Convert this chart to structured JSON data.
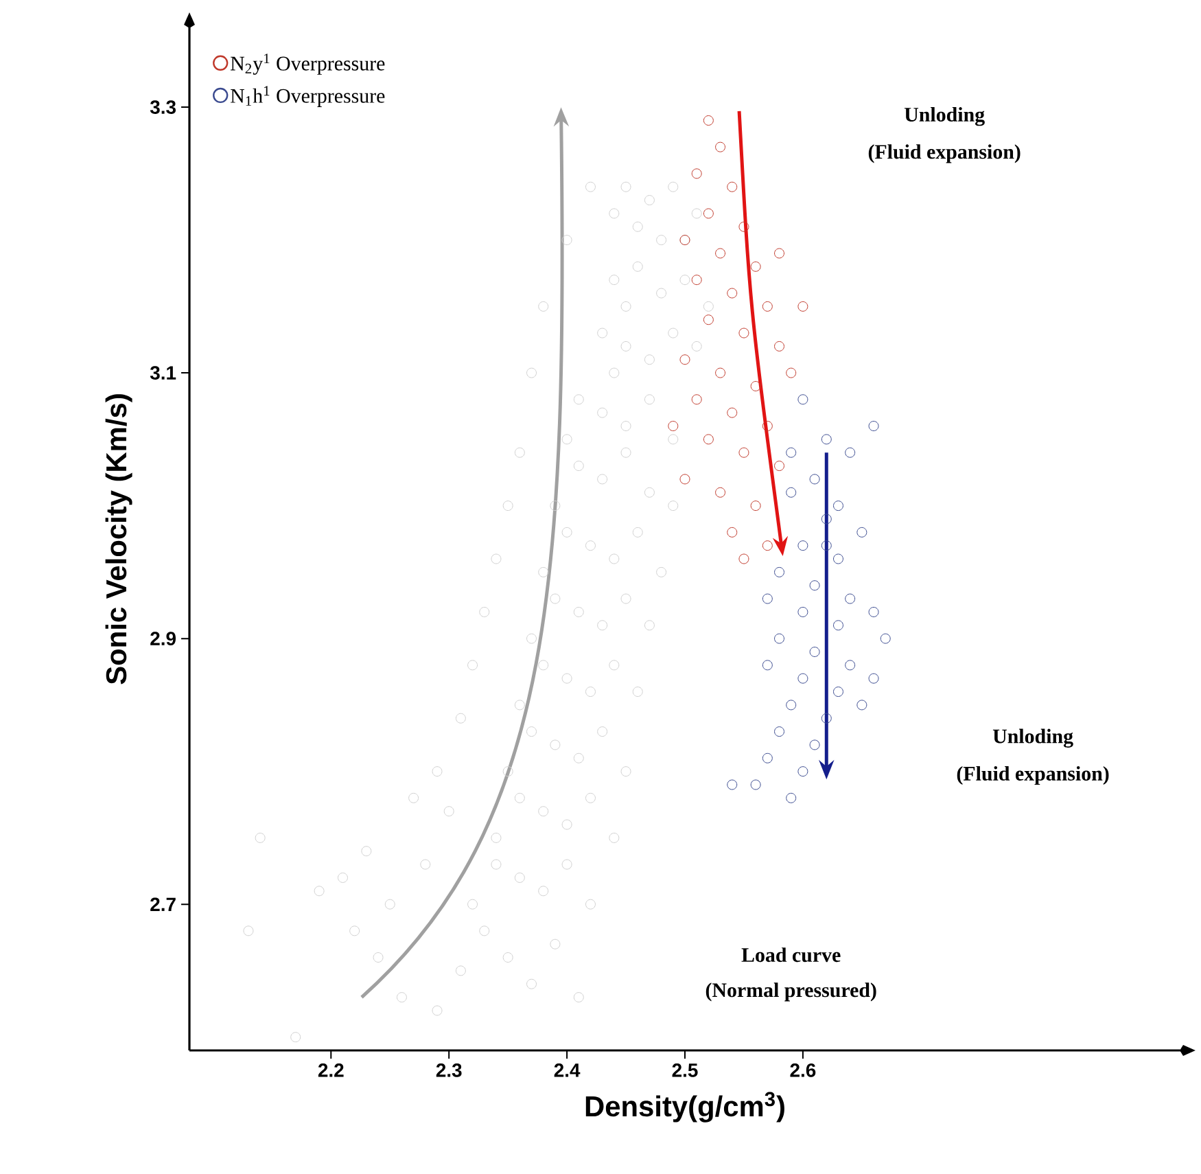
{
  "chart_data": {
    "type": "scatter",
    "xlabel": "Density(g/cm$^{3}$)",
    "ylabel": "Sonic Velocity (Km/s)",
    "xlim": [
      2.08,
      2.92
    ],
    "ylim": [
      2.59,
      3.36
    ],
    "xticks": [
      2.2,
      2.3,
      2.4,
      2.5,
      2.6
    ],
    "yticks": [
      2.7,
      2.9,
      3.1,
      3.3
    ],
    "marker": "circle",
    "legend": "top left",
    "annotations": [
      "Unloding",
      "(Fluid expansion)",
      "Unloding",
      "(Fluid expansion)",
      "Load curve",
      "(Normal pressured)"
    ],
    "series": [
      {
        "color": "#cfcfcf",
        "x": [
          2.45,
          2.47,
          2.49,
          2.51,
          2.46,
          2.48,
          2.5,
          2.44,
          2.44,
          2.46,
          2.48,
          2.5,
          2.52,
          2.45,
          2.43,
          2.45,
          2.47,
          2.49,
          2.51,
          2.44,
          2.41,
          2.43,
          2.45,
          2.47,
          2.49,
          2.4,
          2.41,
          2.43,
          2.45,
          2.47,
          2.39,
          2.49,
          2.4,
          2.42,
          2.44,
          2.46,
          2.38,
          2.48,
          2.39,
          2.41,
          2.43,
          2.45,
          2.37,
          2.47,
          2.38,
          2.4,
          2.42,
          2.44,
          2.36,
          2.46,
          2.37,
          2.39,
          2.41,
          2.43,
          2.35,
          2.45,
          2.36,
          2.38,
          2.4,
          2.42,
          2.34,
          2.44,
          2.34,
          2.36,
          2.38,
          2.4,
          2.32,
          2.42,
          2.33,
          2.35,
          2.37,
          2.39,
          2.31,
          2.41,
          2.29,
          2.14,
          2.13,
          2.17,
          2.19,
          2.21,
          2.22,
          2.23,
          2.25,
          2.24,
          2.27,
          2.28,
          2.29,
          2.26,
          2.3,
          2.31,
          2.32,
          2.33,
          2.34,
          2.35,
          2.36,
          2.37,
          2.38,
          2.4,
          2.42
        ],
        "values": [
          3.24,
          3.23,
          3.24,
          3.22,
          3.21,
          3.2,
          3.2,
          3.22,
          3.17,
          3.18,
          3.16,
          3.17,
          3.15,
          3.15,
          3.13,
          3.12,
          3.11,
          3.13,
          3.12,
          3.1,
          3.08,
          3.07,
          3.06,
          3.08,
          3.05,
          3.05,
          3.03,
          3.02,
          3.04,
          3.01,
          3.0,
          3.0,
          2.98,
          2.97,
          2.96,
          2.98,
          2.95,
          2.95,
          2.93,
          2.92,
          2.91,
          2.93,
          2.9,
          2.91,
          2.88,
          2.87,
          2.86,
          2.88,
          2.85,
          2.86,
          2.83,
          2.82,
          2.81,
          2.83,
          2.8,
          2.8,
          2.78,
          2.77,
          2.76,
          2.78,
          2.75,
          2.75,
          2.73,
          2.72,
          2.71,
          2.73,
          2.7,
          2.7,
          2.68,
          2.66,
          2.64,
          2.67,
          2.65,
          2.63,
          2.62,
          2.75,
          2.68,
          2.6,
          2.71,
          2.72,
          2.68,
          2.74,
          2.7,
          2.66,
          2.78,
          2.73,
          2.8,
          2.63,
          2.77,
          2.84,
          2.88,
          2.92,
          2.96,
          3.0,
          3.04,
          3.1,
          3.15,
          3.2,
          3.24
        ]
      },
      {
        "name": "N$_{2}$y$^{1}$  Overpressure",
        "color": "#c0392b",
        "x": [
          2.52,
          2.53,
          2.51,
          2.54,
          2.52,
          2.55,
          2.53,
          2.56,
          2.51,
          2.54,
          2.57,
          2.52,
          2.55,
          2.58,
          2.5,
          2.53,
          2.56,
          2.59,
          2.51,
          2.54,
          2.57,
          2.49,
          2.52,
          2.55,
          2.58,
          2.5,
          2.53,
          2.56,
          2.54,
          2.57,
          2.55,
          2.6,
          2.58,
          2.5
        ],
        "values": [
          3.29,
          3.27,
          3.25,
          3.24,
          3.22,
          3.21,
          3.19,
          3.18,
          3.17,
          3.16,
          3.15,
          3.14,
          3.13,
          3.12,
          3.11,
          3.1,
          3.09,
          3.1,
          3.08,
          3.07,
          3.06,
          3.06,
          3.05,
          3.04,
          3.03,
          3.02,
          3.01,
          3.0,
          2.98,
          2.97,
          2.96,
          3.15,
          3.19,
          3.2
        ]
      },
      {
        "name": "N$_{1}$h$^{1}$  Overpressure",
        "color": "#3a4a8f",
        "x": [
          2.6,
          2.62,
          2.64,
          2.61,
          2.63,
          2.66,
          2.59,
          2.62,
          2.65,
          2.6,
          2.63,
          2.58,
          2.61,
          2.64,
          2.57,
          2.6,
          2.63,
          2.66,
          2.58,
          2.61,
          2.64,
          2.57,
          2.6,
          2.63,
          2.66,
          2.59,
          2.62,
          2.65,
          2.58,
          2.61,
          2.57,
          2.6,
          2.56,
          2.59,
          2.54,
          2.67,
          2.62,
          2.59
        ],
        "values": [
          3.08,
          3.05,
          3.04,
          3.02,
          3.0,
          3.06,
          3.01,
          2.99,
          2.98,
          2.97,
          2.96,
          2.95,
          2.94,
          2.93,
          2.93,
          2.92,
          2.91,
          2.92,
          2.9,
          2.89,
          2.88,
          2.88,
          2.87,
          2.86,
          2.87,
          2.85,
          2.84,
          2.85,
          2.83,
          2.82,
          2.81,
          2.8,
          2.79,
          2.78,
          2.79,
          2.9,
          2.97,
          3.04
        ]
      }
    ]
  }
}
